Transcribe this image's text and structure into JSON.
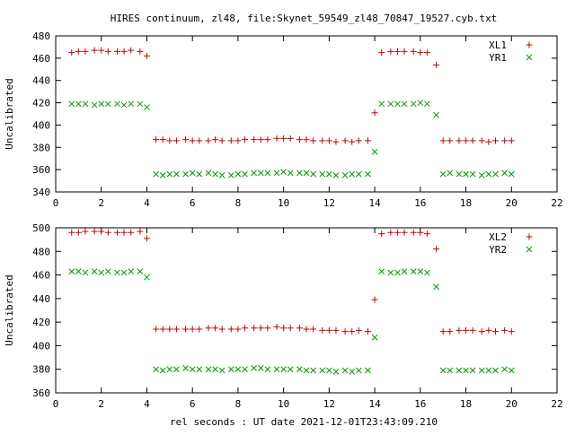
{
  "title": "HIRES continuum, zl48, file:Skynet_59549_zl48_70847_19527.cyb.txt",
  "xlabel": "rel seconds : UT date 2021-12-01T23:43:09.210",
  "chart_data": [
    {
      "type": "scatter",
      "ylabel": "Uncalibrated",
      "xlim": [
        0,
        22
      ],
      "ylim": [
        340,
        480
      ],
      "xticks": [
        0,
        2,
        4,
        6,
        8,
        10,
        12,
        14,
        16,
        18,
        20,
        22
      ],
      "yticks": [
        340,
        360,
        380,
        400,
        420,
        440,
        460,
        480
      ],
      "legend_position": "top-right",
      "series": [
        {
          "name": "XL1",
          "marker": "plus",
          "color": "#cc0000",
          "points": [
            [
              0.7,
              465
            ],
            [
              1.0,
              466
            ],
            [
              1.3,
              466
            ],
            [
              1.7,
              467
            ],
            [
              2.0,
              467
            ],
            [
              2.3,
              466
            ],
            [
              2.7,
              466
            ],
            [
              3.0,
              466
            ],
            [
              3.3,
              467
            ],
            [
              3.7,
              466
            ],
            [
              4.0,
              462
            ],
            [
              4.4,
              387
            ],
            [
              4.7,
              387
            ],
            [
              5.0,
              386
            ],
            [
              5.3,
              386
            ],
            [
              5.7,
              387
            ],
            [
              6.0,
              386
            ],
            [
              6.3,
              386
            ],
            [
              6.7,
              386
            ],
            [
              7.0,
              387
            ],
            [
              7.3,
              386
            ],
            [
              7.7,
              386
            ],
            [
              8.0,
              386
            ],
            [
              8.3,
              387
            ],
            [
              8.7,
              387
            ],
            [
              9.0,
              387
            ],
            [
              9.3,
              387
            ],
            [
              9.7,
              388
            ],
            [
              10.0,
              388
            ],
            [
              10.3,
              388
            ],
            [
              10.7,
              387
            ],
            [
              11.0,
              387
            ],
            [
              11.3,
              386
            ],
            [
              11.7,
              386
            ],
            [
              12.0,
              386
            ],
            [
              12.3,
              385
            ],
            [
              12.7,
              386
            ],
            [
              13.0,
              385
            ],
            [
              13.3,
              386
            ],
            [
              13.7,
              386
            ],
            [
              14.0,
              411
            ],
            [
              14.3,
              465
            ],
            [
              14.7,
              466
            ],
            [
              15.0,
              466
            ],
            [
              15.3,
              466
            ],
            [
              15.7,
              466
            ],
            [
              16.0,
              465
            ],
            [
              16.3,
              465
            ],
            [
              16.7,
              454
            ],
            [
              17.0,
              386
            ],
            [
              17.3,
              386
            ],
            [
              17.7,
              386
            ],
            [
              18.0,
              386
            ],
            [
              18.3,
              386
            ],
            [
              18.7,
              386
            ],
            [
              19.0,
              385
            ],
            [
              19.3,
              386
            ],
            [
              19.7,
              386
            ],
            [
              20.0,
              386
            ]
          ]
        },
        {
          "name": "YR1",
          "marker": "cross",
          "color": "#009900",
          "points": [
            [
              0.7,
              419
            ],
            [
              1.0,
              419
            ],
            [
              1.3,
              419
            ],
            [
              1.7,
              418
            ],
            [
              2.0,
              419
            ],
            [
              2.3,
              419
            ],
            [
              2.7,
              419
            ],
            [
              3.0,
              418
            ],
            [
              3.3,
              419
            ],
            [
              3.7,
              419
            ],
            [
              4.0,
              416
            ],
            [
              4.4,
              356
            ],
            [
              4.7,
              355
            ],
            [
              5.0,
              356
            ],
            [
              5.3,
              356
            ],
            [
              5.7,
              356
            ],
            [
              6.0,
              357
            ],
            [
              6.3,
              356
            ],
            [
              6.7,
              357
            ],
            [
              7.0,
              356
            ],
            [
              7.3,
              355
            ],
            [
              7.7,
              355
            ],
            [
              8.0,
              356
            ],
            [
              8.3,
              356
            ],
            [
              8.7,
              357
            ],
            [
              9.0,
              357
            ],
            [
              9.3,
              357
            ],
            [
              9.7,
              357
            ],
            [
              10.0,
              358
            ],
            [
              10.3,
              357
            ],
            [
              10.7,
              357
            ],
            [
              11.0,
              357
            ],
            [
              11.3,
              356
            ],
            [
              11.7,
              356
            ],
            [
              12.0,
              356
            ],
            [
              12.3,
              355
            ],
            [
              12.7,
              355
            ],
            [
              13.0,
              356
            ],
            [
              13.3,
              356
            ],
            [
              13.7,
              356
            ],
            [
              14.0,
              376
            ],
            [
              14.3,
              419
            ],
            [
              14.7,
              419
            ],
            [
              15.0,
              419
            ],
            [
              15.3,
              419
            ],
            [
              15.7,
              419
            ],
            [
              16.0,
              420
            ],
            [
              16.3,
              419
            ],
            [
              16.7,
              409
            ],
            [
              17.0,
              356
            ],
            [
              17.3,
              357
            ],
            [
              17.7,
              356
            ],
            [
              18.0,
              356
            ],
            [
              18.3,
              356
            ],
            [
              18.7,
              355
            ],
            [
              19.0,
              356
            ],
            [
              19.3,
              356
            ],
            [
              19.7,
              357
            ],
            [
              20.0,
              356
            ]
          ]
        }
      ]
    },
    {
      "type": "scatter",
      "ylabel": "Uncalibrated",
      "xlim": [
        0,
        22
      ],
      "ylim": [
        360,
        500
      ],
      "xticks": [
        0,
        2,
        4,
        6,
        8,
        10,
        12,
        14,
        16,
        18,
        20,
        22
      ],
      "yticks": [
        360,
        380,
        400,
        420,
        440,
        460,
        480,
        500
      ],
      "legend_position": "top-right",
      "series": [
        {
          "name": "XL2",
          "marker": "plus",
          "color": "#cc0000",
          "points": [
            [
              0.7,
              496
            ],
            [
              1.0,
              496
            ],
            [
              1.3,
              497
            ],
            [
              1.7,
              497
            ],
            [
              2.0,
              497
            ],
            [
              2.3,
              496
            ],
            [
              2.7,
              496
            ],
            [
              3.0,
              496
            ],
            [
              3.3,
              496
            ],
            [
              3.7,
              497
            ],
            [
              4.0,
              491
            ],
            [
              4.4,
              414
            ],
            [
              4.7,
              414
            ],
            [
              5.0,
              414
            ],
            [
              5.3,
              414
            ],
            [
              5.7,
              414
            ],
            [
              6.0,
              414
            ],
            [
              6.3,
              414
            ],
            [
              6.7,
              415
            ],
            [
              7.0,
              415
            ],
            [
              7.3,
              414
            ],
            [
              7.7,
              414
            ],
            [
              8.0,
              414
            ],
            [
              8.3,
              415
            ],
            [
              8.7,
              415
            ],
            [
              9.0,
              415
            ],
            [
              9.3,
              415
            ],
            [
              9.7,
              416
            ],
            [
              10.0,
              415
            ],
            [
              10.3,
              415
            ],
            [
              10.7,
              415
            ],
            [
              11.0,
              414
            ],
            [
              11.3,
              414
            ],
            [
              11.7,
              413
            ],
            [
              12.0,
              413
            ],
            [
              12.3,
              413
            ],
            [
              12.7,
              412
            ],
            [
              13.0,
              412
            ],
            [
              13.3,
              413
            ],
            [
              13.7,
              412
            ],
            [
              14.0,
              439
            ],
            [
              14.3,
              495
            ],
            [
              14.7,
              496
            ],
            [
              15.0,
              496
            ],
            [
              15.3,
              496
            ],
            [
              15.7,
              496
            ],
            [
              16.0,
              496
            ],
            [
              16.3,
              495
            ],
            [
              16.7,
              482
            ],
            [
              17.0,
              412
            ],
            [
              17.3,
              412
            ],
            [
              17.7,
              413
            ],
            [
              18.0,
              413
            ],
            [
              18.3,
              413
            ],
            [
              18.7,
              412
            ],
            [
              19.0,
              413
            ],
            [
              19.3,
              412
            ],
            [
              19.7,
              413
            ],
            [
              20.0,
              412
            ]
          ]
        },
        {
          "name": "YR2",
          "marker": "cross",
          "color": "#009900",
          "points": [
            [
              0.7,
              463
            ],
            [
              1.0,
              463
            ],
            [
              1.3,
              462
            ],
            [
              1.7,
              463
            ],
            [
              2.0,
              462
            ],
            [
              2.3,
              463
            ],
            [
              2.7,
              462
            ],
            [
              3.0,
              462
            ],
            [
              3.3,
              463
            ],
            [
              3.7,
              463
            ],
            [
              4.0,
              458
            ],
            [
              4.4,
              380
            ],
            [
              4.7,
              379
            ],
            [
              5.0,
              380
            ],
            [
              5.3,
              380
            ],
            [
              5.7,
              381
            ],
            [
              6.0,
              380
            ],
            [
              6.3,
              380
            ],
            [
              6.7,
              380
            ],
            [
              7.0,
              380
            ],
            [
              7.3,
              379
            ],
            [
              7.7,
              380
            ],
            [
              8.0,
              380
            ],
            [
              8.3,
              380
            ],
            [
              8.7,
              381
            ],
            [
              9.0,
              381
            ],
            [
              9.3,
              380
            ],
            [
              9.7,
              380
            ],
            [
              10.0,
              380
            ],
            [
              10.3,
              380
            ],
            [
              10.7,
              380
            ],
            [
              11.0,
              379
            ],
            [
              11.3,
              379
            ],
            [
              11.7,
              379
            ],
            [
              12.0,
              379
            ],
            [
              12.3,
              378
            ],
            [
              12.7,
              379
            ],
            [
              13.0,
              378
            ],
            [
              13.3,
              379
            ],
            [
              13.7,
              379
            ],
            [
              14.0,
              407
            ],
            [
              14.3,
              463
            ],
            [
              14.7,
              462
            ],
            [
              15.0,
              462
            ],
            [
              15.3,
              463
            ],
            [
              15.7,
              463
            ],
            [
              16.0,
              463
            ],
            [
              16.3,
              462
            ],
            [
              16.7,
              450
            ],
            [
              17.0,
              379
            ],
            [
              17.3,
              379
            ],
            [
              17.7,
              379
            ],
            [
              18.0,
              379
            ],
            [
              18.3,
              379
            ],
            [
              18.7,
              379
            ],
            [
              19.0,
              379
            ],
            [
              19.3,
              379
            ],
            [
              19.7,
              380
            ],
            [
              20.0,
              379
            ]
          ]
        }
      ]
    }
  ]
}
